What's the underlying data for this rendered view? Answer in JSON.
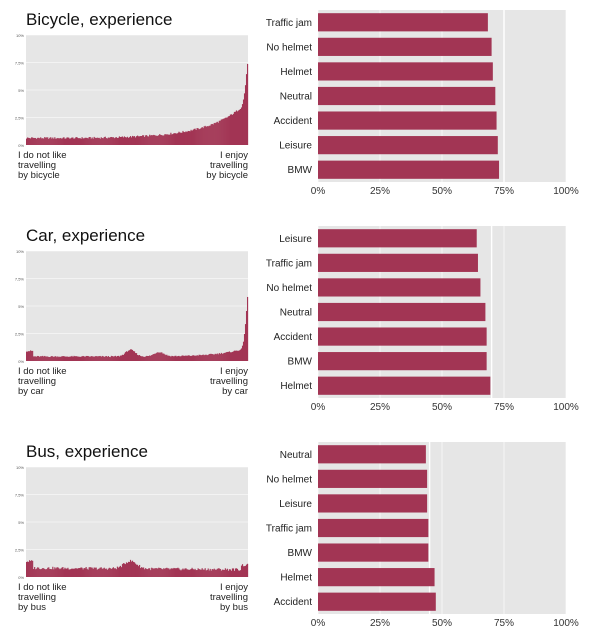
{
  "panels": [
    {
      "title": "Bicycle, experience",
      "left_label": [
        "I do not like",
        "travelling",
        "by bicycle"
      ],
      "right_label": [
        "I enjoy",
        "travelling",
        "by bicycle"
      ]
    },
    {
      "title": "Car, experience",
      "left_label": [
        "I do not like",
        "travelling",
        "by car"
      ],
      "right_label": [
        "I enjoy",
        "travelling",
        "by car"
      ]
    },
    {
      "title": "Bus, experience",
      "left_label": [
        "I do not like",
        "travelling",
        "by bus"
      ],
      "right_label": [
        "I enjoy",
        "travelling",
        "by bus"
      ]
    }
  ],
  "colors": {
    "bar": "#a23554",
    "plot_bg": "#e6e6e6",
    "grid": "#ffffff"
  },
  "chart_data": [
    {
      "type": "area",
      "y_ticks": [
        "0%",
        "2,5%",
        "5%",
        "7,5%",
        "10%"
      ],
      "ylim": [
        0,
        10
      ],
      "x_bins": 220,
      "profile": "bicycle",
      "x_labels": [
        "I do not like travelling by bicycle",
        "I enjoy travelling by bicycle"
      ]
    },
    {
      "type": "bar",
      "orientation": "horizontal",
      "categories": [
        "Traffic jam",
        "No helmet",
        "Helmet",
        "Neutral",
        "Accident",
        "Leisure",
        "BMW"
      ],
      "values": [
        68.5,
        70,
        70.5,
        71.5,
        72,
        72.5,
        73
      ],
      "x_ticks": [
        "0%",
        "25%",
        "50%",
        "75%",
        "100%"
      ],
      "xlim": [
        0,
        100
      ],
      "reference_line": 75
    },
    {
      "type": "area",
      "y_ticks": [
        "0%",
        "2,5%",
        "5%",
        "7,5%",
        "10%"
      ],
      "ylim": [
        0,
        10
      ],
      "x_bins": 220,
      "profile": "car",
      "x_labels": [
        "I do not like travelling by car",
        "I enjoy travelling by car"
      ]
    },
    {
      "type": "bar",
      "orientation": "horizontal",
      "categories": [
        "Leisure",
        "Traffic jam",
        "No helmet",
        "Neutral",
        "Accident",
        "BMW",
        "Helmet"
      ],
      "values": [
        64,
        64.5,
        65.5,
        67.5,
        68,
        68,
        69.5
      ],
      "x_ticks": [
        "0%",
        "25%",
        "50%",
        "75%",
        "100%"
      ],
      "xlim": [
        0,
        100
      ],
      "reference_line": 70
    },
    {
      "type": "area",
      "y_ticks": [
        "0%",
        "2,5%",
        "5%",
        "7,5%",
        "10%"
      ],
      "ylim": [
        0,
        10
      ],
      "x_bins": 220,
      "profile": "bus",
      "x_labels": [
        "I do not like travelling by bus",
        "I enjoy travelling by bus"
      ]
    },
    {
      "type": "bar",
      "orientation": "horizontal",
      "categories": [
        "Neutral",
        "No helmet",
        "Leisure",
        "Traffic jam",
        "BMW",
        "Helmet",
        "Accident"
      ],
      "values": [
        43.5,
        44,
        44,
        44.5,
        44.5,
        47,
        47.5
      ],
      "x_ticks": [
        "0%",
        "25%",
        "50%",
        "75%",
        "100%"
      ],
      "xlim": [
        0,
        100
      ],
      "reference_line": 45
    }
  ]
}
